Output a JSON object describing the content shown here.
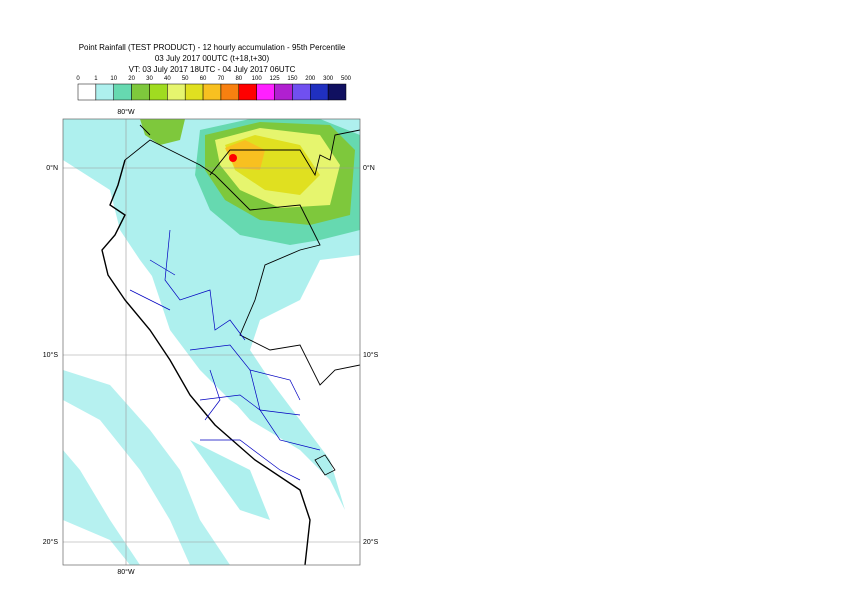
{
  "header": {
    "title": "Point Rainfall (TEST PRODUCT) - 12 hourly accumulation - 95th Percentile",
    "base_time": "03 July 2017 00UTC (t+18,t+30)",
    "valid_time": "VT: 03 July 2017 18UTC - 04 July 2017 06UTC"
  },
  "legend": {
    "labels": [
      "0",
      "1",
      "10",
      "20",
      "30",
      "40",
      "50",
      "60",
      "70",
      "80",
      "100",
      "125",
      "150",
      "200",
      "300",
      "500"
    ],
    "colors": [
      "#ffffff",
      "#aef0ee",
      "#66d9b0",
      "#7ec83c",
      "#a0dc20",
      "#e6f56e",
      "#e0e020",
      "#f8c020",
      "#f88010",
      "#ff0000",
      "#ff20ff",
      "#b020d0",
      "#7050f0",
      "#2030c0",
      "#101060"
    ]
  },
  "map": {
    "lon_labels": [
      "80°W"
    ],
    "lat_labels": [
      "0°N",
      "10°S",
      "20°S"
    ]
  }
}
